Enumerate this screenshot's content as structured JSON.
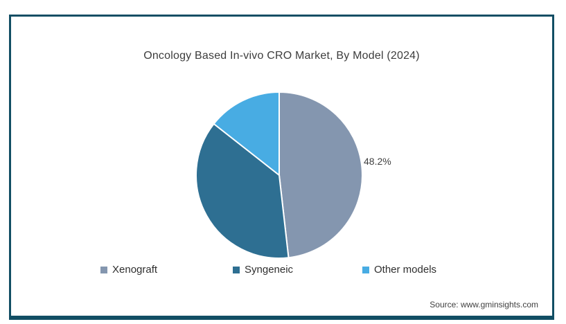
{
  "title": "Oncology Based In-vivo CRO Market, By Model (2024)",
  "slice_callout": "48.2%",
  "source": "Source: www.gminsights.com",
  "colors": {
    "frame": "#124E64",
    "background": "#FFFFFF",
    "xenograft": "#8496AF",
    "syngeneic": "#2E6F92",
    "other_models": "#48ACE3"
  },
  "chart_data": {
    "type": "pie",
    "title": "Oncology Based In-vivo CRO Market, By Model (2024)",
    "categories": [
      "Xenograft",
      "Syngeneic",
      "Other models"
    ],
    "values": [
      48.2,
      37.4,
      14.4
    ],
    "slice_colors": [
      "#8496AF",
      "#2E6F92",
      "#48ACE3"
    ],
    "data_labels": [
      "48.2%",
      null,
      null
    ],
    "start_angle_deg": 0,
    "direction": "clockwise",
    "legend_position": "bottom",
    "separator_color": "#FFFFFF"
  },
  "legend": {
    "items": [
      {
        "label": "Xenograft",
        "color": "#8496AF"
      },
      {
        "label": "Syngeneic",
        "color": "#2E6F92"
      },
      {
        "label": "Other models",
        "color": "#48ACE3"
      }
    ]
  }
}
